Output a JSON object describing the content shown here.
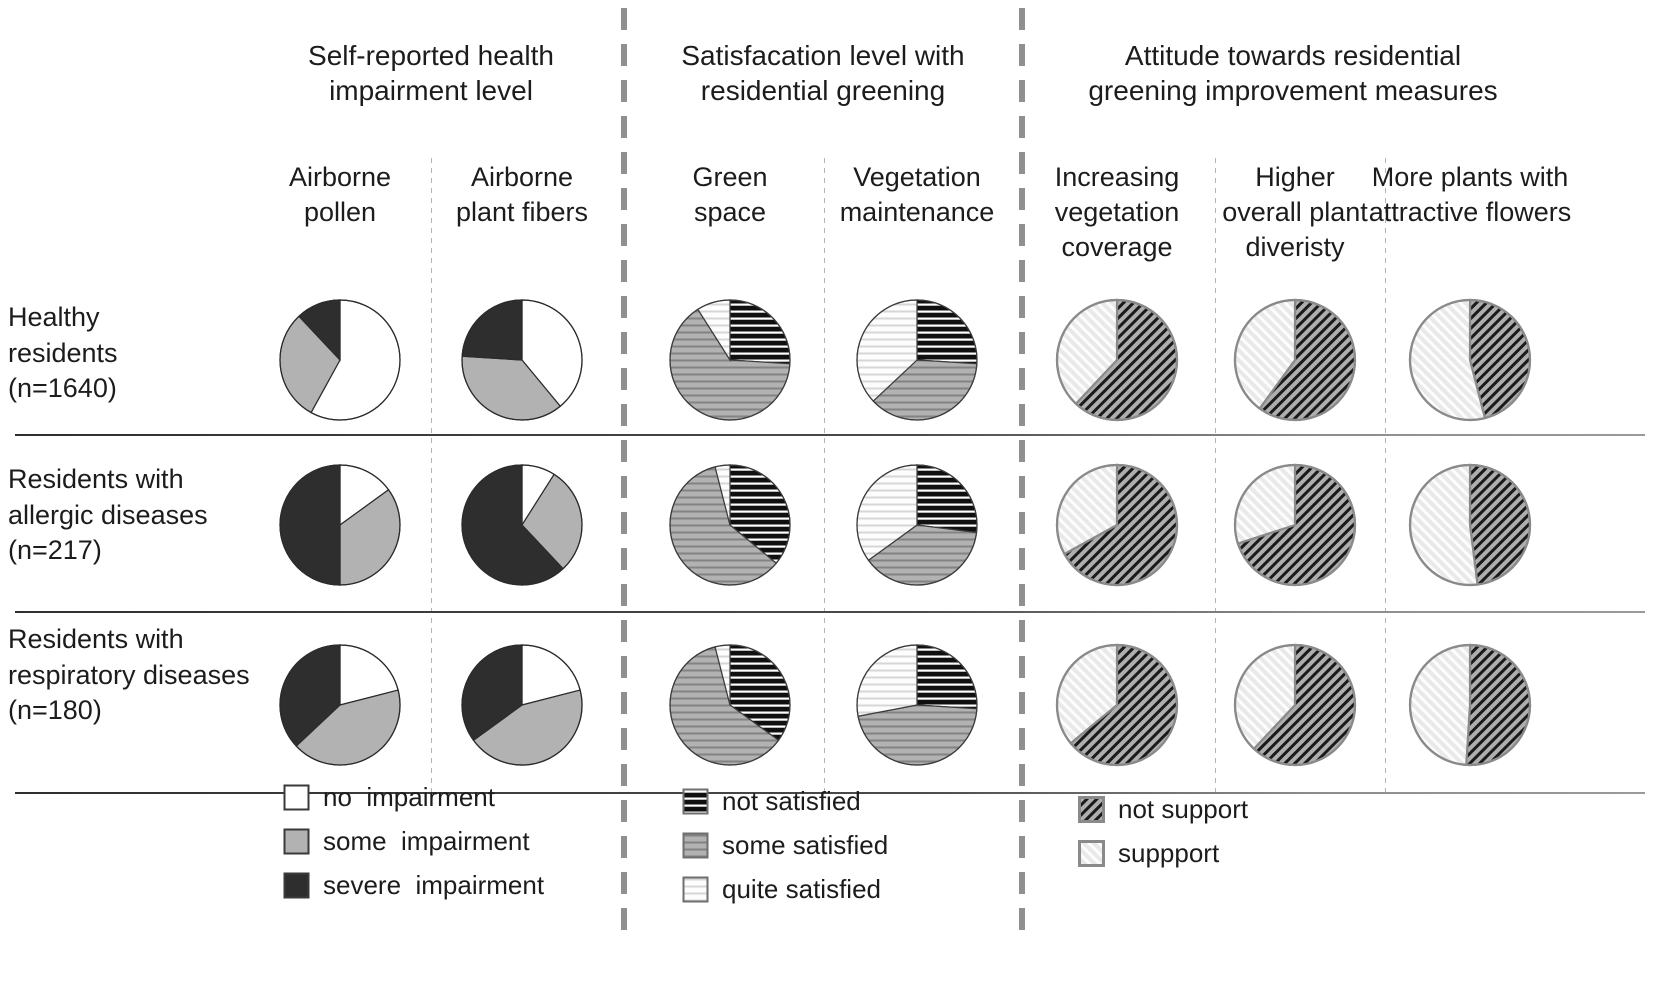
{
  "figure": {
    "background": "#ffffff",
    "description": "Matrix of pie charts: three resident groups (rows) by seven survey questions (columns) grouped under three headers"
  },
  "colors": {
    "text": "#1c1c1c",
    "no_impairment": "#ffffff",
    "some_impairment": "#b2b2b2",
    "severe_impairment": "#2e2e2e",
    "stripe_black_bg": "#101010",
    "stripe_gray_bg": "#b2b2b2",
    "stripe_light_bg": "#fdfdfd",
    "hatch_dark_bg": "#aeaeae",
    "hatch_dark_line": "#1a1a1a",
    "hatch_light_bg": "#e9e9e9",
    "hatch_light_line": "#fdfdfd",
    "separator_gray": "#8f8f8f"
  },
  "chart_data": {
    "type": "pie",
    "unit": "percent of respondents (estimated from slice angles)",
    "groups": [
      {
        "title": "Self-reported health\nimpairment level",
        "columns": [
          "Airborne\npollen",
          "Airborne\nplant fibers"
        ],
        "legend": [
          {
            "label": "no  impairment",
            "pattern": "solid-white"
          },
          {
            "label": "some  impairment",
            "pattern": "solid-gray"
          },
          {
            "label": "severe  impairment",
            "pattern": "solid-dark"
          }
        ]
      },
      {
        "title": "Satisfacation level with\nresidential greening",
        "columns": [
          "Green\nspace",
          "Vegetation\nmaintenance"
        ],
        "legend": [
          {
            "label": "not satisfied",
            "pattern": "stripe-black"
          },
          {
            "label": "some satisfied",
            "pattern": "stripe-gray"
          },
          {
            "label": "quite satisfied",
            "pattern": "stripe-light"
          }
        ]
      },
      {
        "title": "Attitude towards residential\ngreening improvement measures",
        "columns": [
          "Increasing\nvegetation\ncoverage",
          "Higher\noverall plant\ndiveristy",
          "More plants with\nattractive flowers"
        ],
        "legend": [
          {
            "label": "not support",
            "pattern": "hatch-dark"
          },
          {
            "label": "suppport",
            "pattern": "hatch-light"
          }
        ]
      }
    ],
    "rows": [
      {
        "label": "Healthy\nresidents\n(n=1640)",
        "pies": [
          [
            58,
            30,
            12
          ],
          [
            39,
            37,
            24
          ],
          [
            26,
            65,
            9
          ],
          [
            26,
            37,
            37
          ],
          [
            62,
            38
          ],
          [
            60,
            40
          ],
          [
            46,
            54
          ]
        ]
      },
      {
        "label": "Residents with\nallergic diseases\n(n=217)",
        "pies": [
          [
            15,
            35,
            50
          ],
          [
            9,
            29,
            62
          ],
          [
            36,
            60,
            4
          ],
          [
            27,
            38,
            35
          ],
          [
            67,
            33
          ],
          [
            70,
            30
          ],
          [
            48,
            52
          ]
        ]
      },
      {
        "label": "Residents with\nrespiratory diseases\n(n=180)",
        "pies": [
          [
            21,
            42,
            37
          ],
          [
            21,
            44,
            35
          ],
          [
            35,
            61,
            4
          ],
          [
            26,
            46,
            28
          ],
          [
            64,
            36
          ],
          [
            62,
            38
          ],
          [
            51,
            49
          ]
        ]
      }
    ]
  }
}
